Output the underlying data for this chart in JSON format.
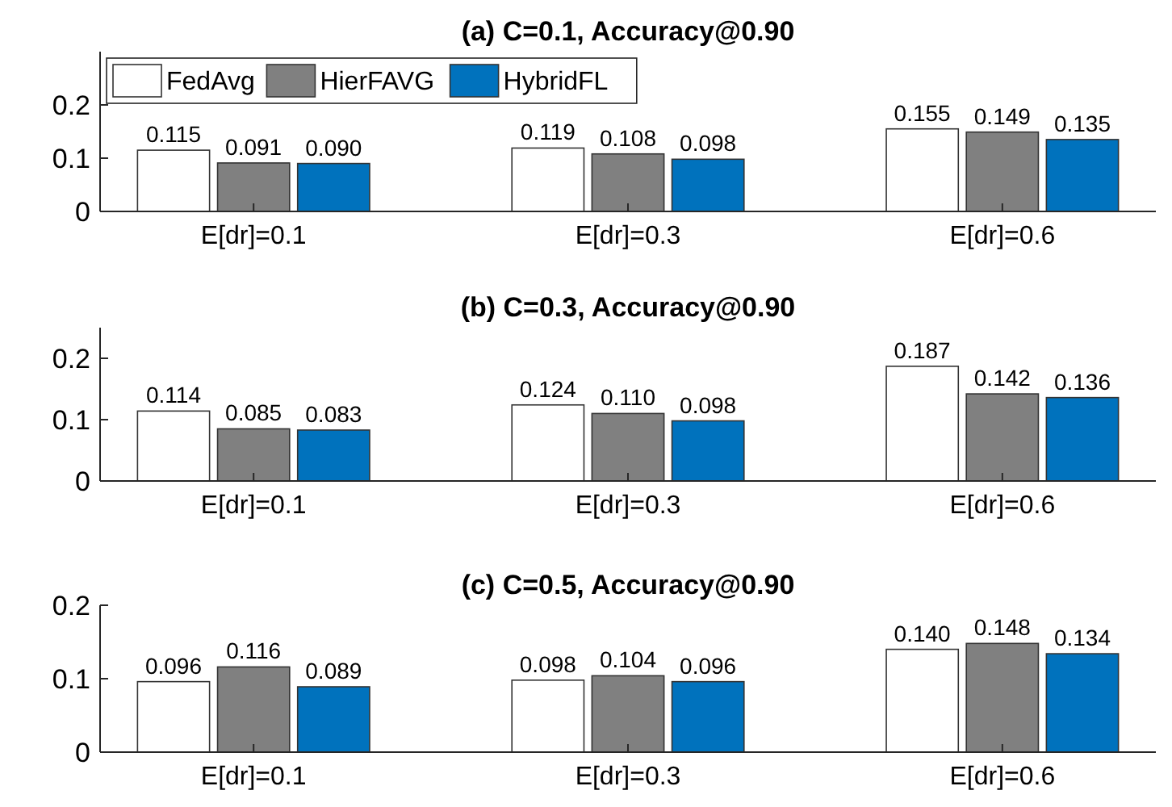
{
  "chart_data": [
    {
      "type": "bar",
      "title": "(a) C=0.1, Accuracy@0.90",
      "categories": [
        "E[dr]=0.1",
        "E[dr]=0.3",
        "E[dr]=0.6"
      ],
      "ylim": [
        0,
        0.3
      ],
      "yticks": [
        0,
        0.1,
        0.2
      ],
      "legend": "top left",
      "series": [
        {
          "name": "FedAvg",
          "color": "#ffffff",
          "values": [
            0.115,
            0.119,
            0.155
          ],
          "value_labels": [
            "0.115",
            "0.119",
            "0.155"
          ]
        },
        {
          "name": "HierFAVG",
          "color": "#808080",
          "values": [
            0.091,
            0.108,
            0.149
          ],
          "value_labels": [
            "0.091",
            "0.108",
            "0.149"
          ]
        },
        {
          "name": "HybridFL",
          "color": "#0072bd",
          "values": [
            0.09,
            0.098,
            0.135
          ],
          "value_labels": [
            "0.090",
            "0.098",
            "0.135"
          ]
        }
      ]
    },
    {
      "type": "bar",
      "title": "(b) C=0.3, Accuracy@0.90",
      "categories": [
        "E[dr]=0.1",
        "E[dr]=0.3",
        "E[dr]=0.6"
      ],
      "ylim": [
        0,
        0.25
      ],
      "yticks": [
        0,
        0.1,
        0.2
      ],
      "series": [
        {
          "color": "#ffffff",
          "values": [
            0.114,
            0.124,
            0.187
          ],
          "value_labels": [
            "0.114",
            "0.124",
            "0.187"
          ]
        },
        {
          "color": "#808080",
          "values": [
            0.085,
            0.11,
            0.142
          ],
          "value_labels": [
            "0.085",
            "0.110",
            "0.142"
          ]
        },
        {
          "color": "#0072bd",
          "values": [
            0.083,
            0.098,
            0.136
          ],
          "value_labels": [
            "0.083",
            "0.098",
            "0.136"
          ]
        }
      ]
    },
    {
      "type": "bar",
      "title": "(c) C=0.5, Accuracy@0.90",
      "categories": [
        "E[dr]=0.1",
        "E[dr]=0.3",
        "E[dr]=0.6"
      ],
      "ylim": [
        0,
        0.2
      ],
      "yticks": [
        0,
        0.1,
        0.2
      ],
      "series": [
        {
          "color": "#ffffff",
          "values": [
            0.096,
            0.098,
            0.14
          ],
          "value_labels": [
            "0.096",
            "0.098",
            "0.140"
          ]
        },
        {
          "color": "#808080",
          "values": [
            0.116,
            0.104,
            0.148
          ],
          "value_labels": [
            "0.116",
            "0.104",
            "0.148"
          ]
        },
        {
          "color": "#0072bd",
          "values": [
            0.089,
            0.096,
            0.134
          ],
          "value_labels": [
            "0.089",
            "0.096",
            "0.134"
          ]
        }
      ]
    }
  ]
}
